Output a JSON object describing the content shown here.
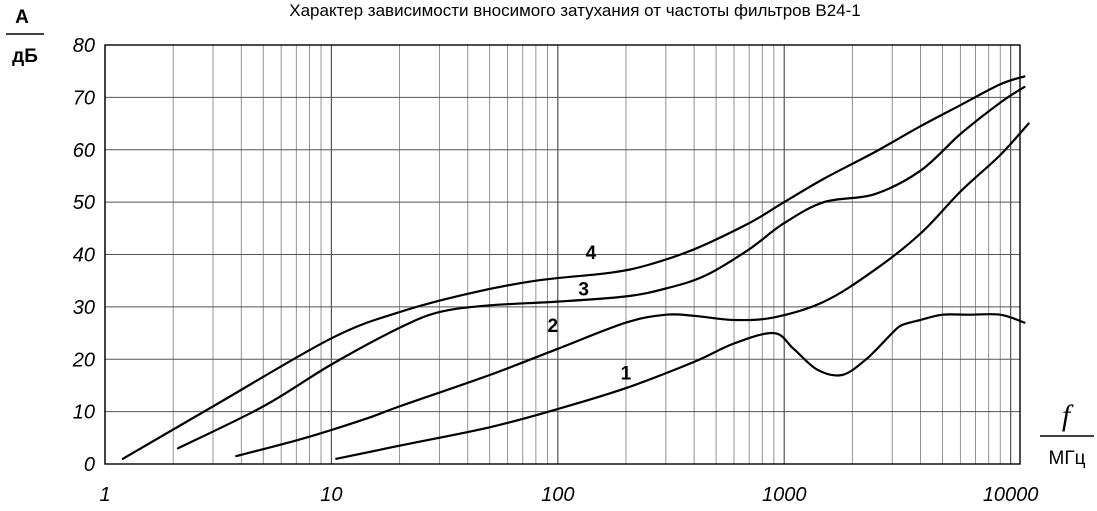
{
  "chart_data": {
    "type": "line",
    "title": "Характер зависимости вносимого затухания от частоты фильтров В24-1",
    "ylabel_top": "А",
    "ylabel_bottom": "дБ",
    "xlabel_top": "f",
    "xlabel_bottom": "МГц",
    "x_scale": "log",
    "xlim": [
      1,
      11000
    ],
    "ylim": [
      0,
      80
    ],
    "grid": true,
    "x_ticks": [
      "1",
      "10",
      "100",
      "1000",
      "10000"
    ],
    "y_ticks": [
      "0",
      "10",
      "20",
      "30",
      "40",
      "50",
      "60",
      "70",
      "80"
    ],
    "series": [
      {
        "name": "1",
        "x": [
          10.5,
          20,
          50,
          100,
          200,
          400,
          600,
          900,
          1100,
          1400,
          1800,
          2300,
          3000,
          3300,
          4000,
          5000,
          6500,
          9000,
          11500
        ],
        "y": [
          1,
          3.5,
          7,
          10.5,
          14.5,
          19.5,
          23,
          25,
          22,
          18,
          17,
          20,
          25,
          26.5,
          27.5,
          28.5,
          28.5,
          28.5,
          27
        ]
      },
      {
        "name": "2",
        "x": [
          3.8,
          7,
          10,
          15,
          20,
          50,
          100,
          200,
          300,
          400,
          600,
          900,
          1500,
          2500,
          4000,
          6000,
          9000,
          12000
        ],
        "y": [
          1.5,
          4.5,
          6.5,
          9,
          11,
          17,
          22,
          27,
          28.5,
          28.3,
          27.5,
          28,
          31,
          37,
          44,
          52,
          59,
          65
        ]
      },
      {
        "name": "3",
        "x": [
          2.1,
          5,
          10,
          20,
          30,
          50,
          100,
          200,
          300,
          450,
          700,
          1000,
          1500,
          2500,
          4000,
          6000,
          9000,
          11500
        ],
        "y": [
          3,
          11,
          19,
          26,
          29,
          30.3,
          31,
          32,
          33.5,
          36,
          41,
          46,
          50,
          51.5,
          56,
          63,
          69,
          72
        ]
      },
      {
        "name": "4",
        "x": [
          1.2,
          3,
          10,
          20,
          40,
          80,
          170,
          250,
          400,
          700,
          1000,
          1500,
          2500,
          4000,
          6000,
          9000,
          11500
        ],
        "y": [
          1,
          11,
          24,
          29,
          32.5,
          35,
          36.5,
          38,
          41,
          46,
          50,
          54.5,
          59.5,
          64.5,
          68.5,
          72.5,
          74
        ]
      }
    ],
    "curve_labels": [
      "1",
      "2",
      "3",
      "4"
    ]
  }
}
